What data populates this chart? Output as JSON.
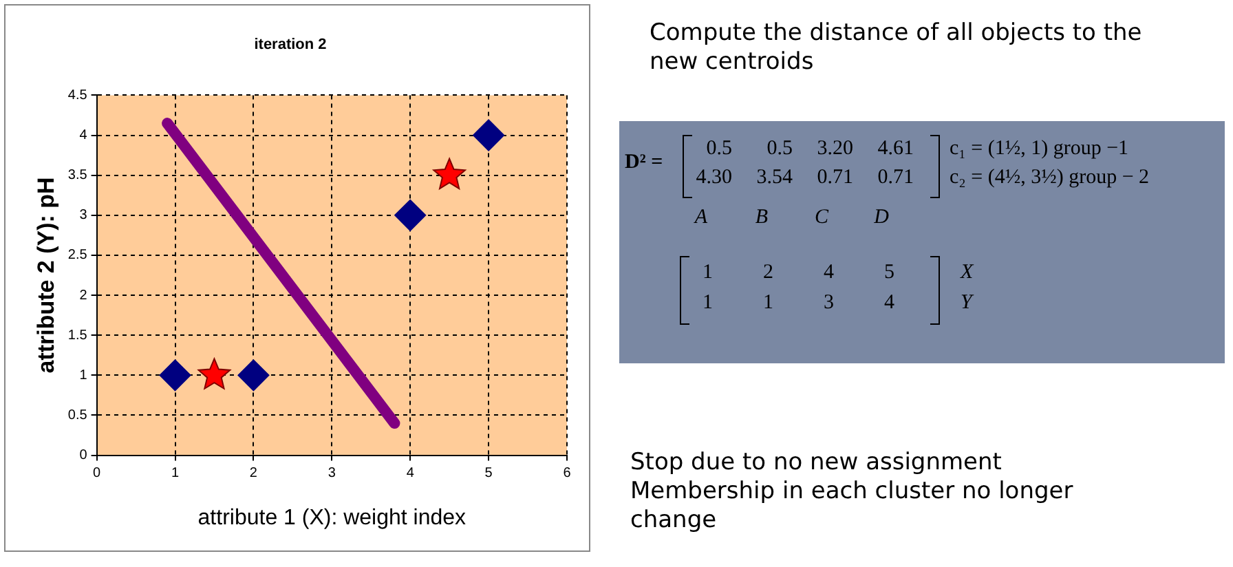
{
  "chart_data": [
    {
      "type": "scatter",
      "title": "iteration 2",
      "xlabel": "attribute 1 (X): weight index",
      "ylabel": "attribute 2 (Y): pH",
      "xlim": [
        0,
        6
      ],
      "xticks": [
        0,
        1,
        2,
        3,
        4,
        5,
        6
      ],
      "ylim": [
        0,
        4.5
      ],
      "yticks": [
        0,
        0.5,
        1,
        1.5,
        2,
        2.5,
        3,
        3.5,
        4,
        4.5
      ],
      "grid": true,
      "legend": false,
      "series": [
        {
          "type": "scatter",
          "color": "#000080",
          "marker": "diamond",
          "x": [
            1,
            2,
            4,
            5
          ],
          "values": [
            1,
            1,
            3,
            4
          ]
        },
        {
          "type": "scatter",
          "color": "#ff0000",
          "marker": "star",
          "x": [
            1.5,
            4.5
          ],
          "values": [
            1,
            3.5
          ]
        },
        {
          "type": "line",
          "color": "#800080",
          "marker": "none",
          "x": [
            0.9,
            3.8
          ],
          "values": [
            4.15,
            0.4
          ]
        }
      ]
    },
    {
      "type": "other",
      "annotations": [
        "Compute the distance of all objects to the new centroids",
        "D² =",
        "0.5 0.5 3.20 4.61",
        "4.30 3.54 0.71 0.71",
        "c₁ = (1½, 1)   group −1",
        "c₂ = (4½, 3½)   group − 2",
        "A B C D",
        "1 2 4 5",
        "1 1 3 4",
        "X",
        "Y",
        "Stop due to no new assignment Membership in each cluster no longer change"
      ]
    }
  ]
}
